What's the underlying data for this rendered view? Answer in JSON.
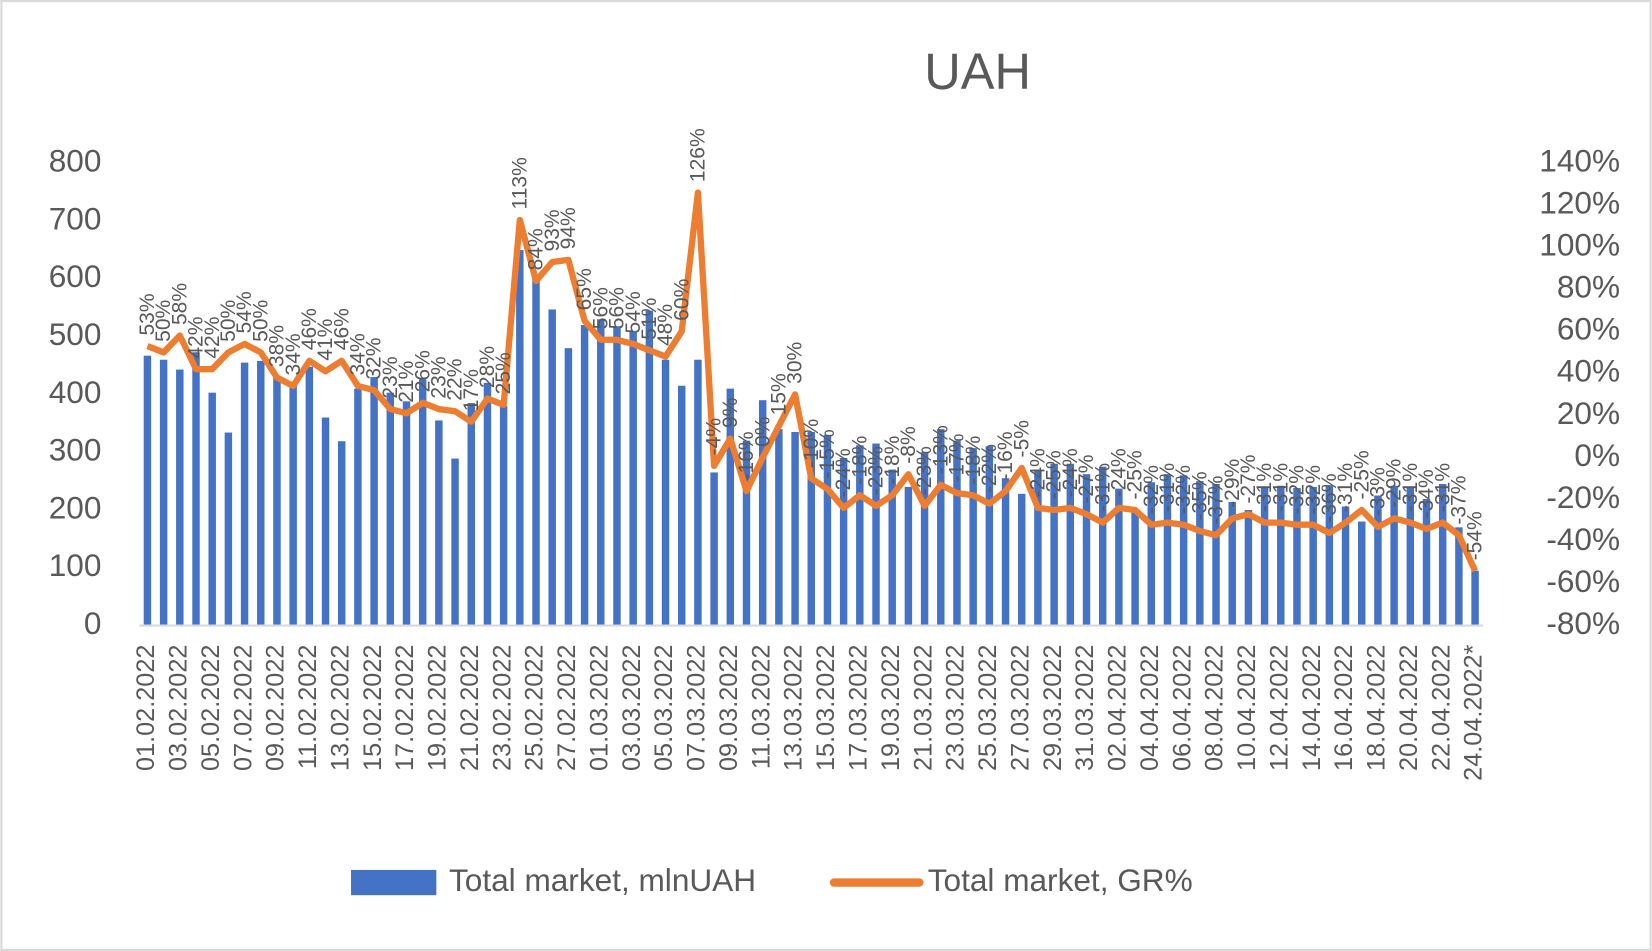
{
  "chart_data": {
    "type": "bar+line",
    "title": "UAH",
    "categories": [
      "01.02.2022",
      null,
      "03.02.2022",
      null,
      "05.02.2022",
      null,
      "07.02.2022",
      null,
      "09.02.2022",
      null,
      "11.02.2022",
      null,
      "13.02.2022",
      null,
      "15.02.2022",
      null,
      "17.02.2022",
      null,
      "19.02.2022",
      null,
      "21.02.2022",
      null,
      "23.02.2022",
      null,
      "25.02.2022",
      null,
      "27.02.2022",
      null,
      "01.03.2022",
      null,
      "03.03.2022",
      null,
      "05.03.2022",
      null,
      "07.03.2022",
      null,
      "09.03.2022",
      null,
      "11.03.2022",
      null,
      "13.03.2022",
      null,
      "15.03.2022",
      null,
      "17.03.2022",
      null,
      "19.03.2022",
      null,
      "21.03.2022",
      null,
      "23.03.2022",
      null,
      "25.03.2022",
      null,
      "27.03.2022",
      null,
      "29.03.2022",
      null,
      "31.03.2022",
      null,
      "02.04.2022",
      null,
      "04.04.2022",
      null,
      "06.04.2022",
      null,
      "08.04.2022",
      null,
      "10.04.2022",
      null,
      "12.04.2022",
      null,
      "14.04.2022",
      null,
      "16.04.2022",
      null,
      "18.04.2022",
      null,
      "20.04.2022",
      null,
      "22.04.2022",
      null,
      "24.04.2022*"
    ],
    "series": [
      {
        "name": "Total market, mlnUAH",
        "kind": "bar",
        "color": "#4472c4",
        "values": [
          467,
          460,
          443,
          473,
          403,
          334,
          455,
          458,
          430,
          415,
          448,
          360,
          319,
          410,
          430,
          403,
          388,
          426,
          355,
          289,
          385,
          420,
          380,
          650,
          600,
          547,
          480,
          520,
          530,
          518,
          510,
          545,
          460,
          415,
          460,
          265,
          410,
          320,
          390,
          340,
          335,
          335,
          330,
          290,
          312,
          315,
          270,
          240,
          300,
          340,
          320,
          307,
          310,
          255,
          228,
          270,
          280,
          280,
          262,
          275,
          237,
          200,
          248,
          262,
          260,
          250,
          245,
          214,
          200,
          240,
          242,
          238,
          240,
          243,
          206,
          180,
          225,
          242,
          238,
          219,
          245,
          170,
          95
        ]
      },
      {
        "name": "Total market, GR%",
        "kind": "line",
        "axis": "y2",
        "color": "#ed7d31",
        "values": [
          53,
          50,
          58,
          42,
          42,
          50,
          54,
          50,
          38,
          34,
          46,
          41,
          46,
          34,
          32,
          23,
          21,
          26,
          23,
          22,
          17,
          28,
          25,
          113,
          84,
          93,
          94,
          65,
          56,
          56,
          54,
          51,
          48,
          60,
          126,
          -4,
          9,
          -16,
          0,
          15,
          30,
          -10,
          -15,
          -24,
          -18,
          -23,
          -18,
          -8,
          -23,
          -13,
          -17,
          -18,
          -22,
          -16,
          -5,
          -24,
          -25,
          -24,
          -27,
          -31,
          -24,
          -25,
          -32,
          -31,
          -32,
          -35,
          -37,
          -29,
          -27,
          -31,
          -31,
          -32,
          -32,
          -36,
          -31,
          -25,
          -33,
          -29,
          -31,
          -34,
          -31,
          -37,
          -54
        ],
        "value_labels": [
          "53%",
          "50%",
          "58%",
          "42%",
          "42%",
          "50%",
          "54%",
          "50%",
          "38%",
          "34%",
          "46%",
          "41%",
          "46%",
          "34%",
          "32%",
          "23%",
          "21%",
          "26%",
          "23%",
          "22%",
          "17%",
          "28%",
          "25%",
          "113%",
          "84%",
          "93%",
          "94%",
          "65%",
          "56%",
          "56%",
          "54%",
          "51%",
          "48%",
          "60%",
          "126%",
          "-4%",
          "9%",
          "-16%",
          "0%",
          "15%",
          "30%",
          "-10%",
          "-15%",
          "-24%",
          "-18%",
          "-23%",
          "-18%",
          "-8%",
          "-23%",
          "-13%",
          "-17%",
          "-18%",
          "-22%",
          "-16%",
          "-5%",
          "-24%",
          "-25%",
          "-24%",
          "-27%",
          "-31%",
          "-24%",
          "-25%",
          "-32%",
          "-31%",
          "-32%",
          "-35%",
          "-37%",
          "-29%",
          "-27%",
          "-31%",
          "-31%",
          "-32%",
          "-32%",
          "-36%",
          "-31%",
          "-25%",
          "-33%",
          "-29%",
          "-31%",
          "-34%",
          "-31%",
          "-37%",
          "-54%"
        ]
      }
    ],
    "ylim": [
      0,
      800
    ],
    "yticks": [
      0,
      100,
      200,
      300,
      400,
      500,
      600,
      700,
      800
    ],
    "y2lim": [
      -80,
      140
    ],
    "y2ticks": [
      {
        "value": -80,
        "label": "-80%"
      },
      {
        "value": -60,
        "label": "-60%"
      },
      {
        "value": -40,
        "label": "-40%"
      },
      {
        "value": -20,
        "label": "-20%"
      },
      {
        "value": 0,
        "label": "0%"
      },
      {
        "value": 20,
        "label": "20%"
      },
      {
        "value": 40,
        "label": "40%"
      },
      {
        "value": 60,
        "label": "60%"
      },
      {
        "value": 80,
        "label": "80%"
      },
      {
        "value": 100,
        "label": "100%"
      },
      {
        "value": 120,
        "label": "120%"
      },
      {
        "value": 140,
        "label": "140%"
      }
    ],
    "grid": false,
    "legend": "bottom"
  }
}
